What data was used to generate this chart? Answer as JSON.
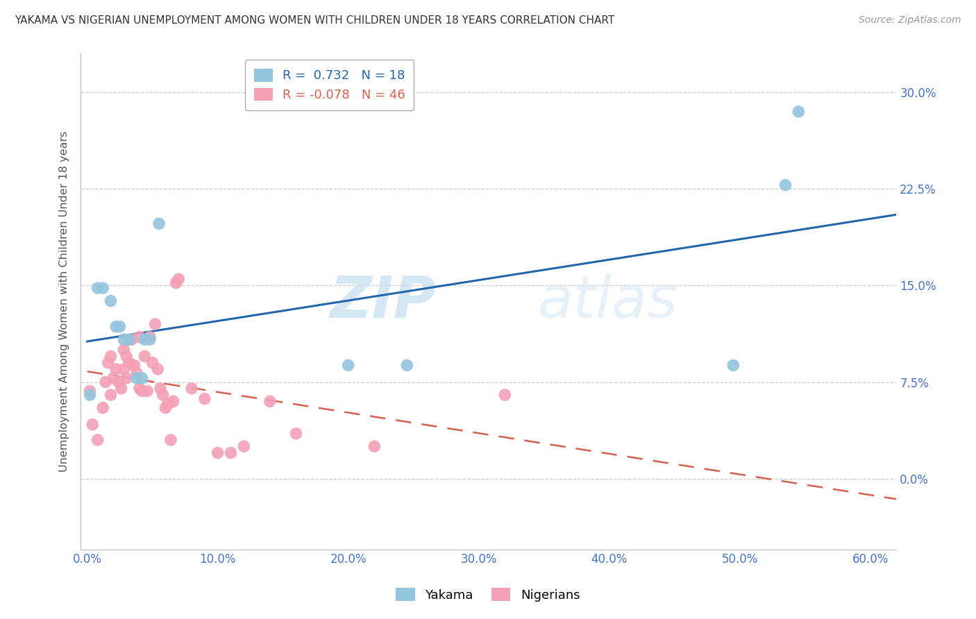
{
  "title": "YAKAMA VS NIGERIAN UNEMPLOYMENT AMONG WOMEN WITH CHILDREN UNDER 18 YEARS CORRELATION CHART",
  "source": "Source: ZipAtlas.com",
  "ylabel": "Unemployment Among Women with Children Under 18 years",
  "xlabel_ticks": [
    "0.0%",
    "10.0%",
    "20.0%",
    "30.0%",
    "40.0%",
    "50.0%",
    "60.0%"
  ],
  "xlabel_vals": [
    0.0,
    0.1,
    0.2,
    0.3,
    0.4,
    0.5,
    0.6
  ],
  "ylabel_ticks": [
    "0.0%",
    "7.5%",
    "15.0%",
    "22.5%",
    "30.0%"
  ],
  "ylabel_vals": [
    0.0,
    0.075,
    0.15,
    0.225,
    0.3
  ],
  "xlim": [
    -0.005,
    0.62
  ],
  "ylim": [
    -0.055,
    0.33
  ],
  "legend_r1": "R =  0.732   N = 18",
  "legend_r2": "R = -0.078   N = 46",
  "yakama_color": "#92c5de",
  "nigerian_color": "#f4a0b5",
  "trendline_yakama_color": "#2166ac",
  "trendline_nigerian_color": "#d6604d",
  "watermark_zip": "ZIP",
  "watermark_atlas": "atlas",
  "yakama_x": [
    0.002,
    0.008,
    0.012,
    0.018,
    0.022,
    0.025,
    0.028,
    0.032,
    0.038,
    0.042,
    0.044,
    0.048,
    0.055,
    0.2,
    0.245,
    0.495,
    0.535,
    0.545
  ],
  "yakama_y": [
    0.065,
    0.148,
    0.148,
    0.138,
    0.118,
    0.118,
    0.108,
    0.108,
    0.078,
    0.078,
    0.108,
    0.108,
    0.198,
    0.088,
    0.088,
    0.088,
    0.228,
    0.285
  ],
  "nigerian_x": [
    0.002,
    0.004,
    0.008,
    0.012,
    0.014,
    0.016,
    0.018,
    0.018,
    0.02,
    0.022,
    0.024,
    0.026,
    0.028,
    0.028,
    0.03,
    0.03,
    0.032,
    0.034,
    0.036,
    0.038,
    0.04,
    0.04,
    0.042,
    0.044,
    0.046,
    0.048,
    0.05,
    0.052,
    0.054,
    0.056,
    0.058,
    0.06,
    0.062,
    0.064,
    0.066,
    0.068,
    0.07,
    0.08,
    0.09,
    0.1,
    0.11,
    0.12,
    0.14,
    0.16,
    0.22,
    0.32
  ],
  "nigerian_y": [
    0.068,
    0.042,
    0.03,
    0.055,
    0.075,
    0.09,
    0.095,
    0.065,
    0.078,
    0.085,
    0.075,
    0.07,
    0.1,
    0.085,
    0.095,
    0.078,
    0.09,
    0.108,
    0.088,
    0.082,
    0.07,
    0.11,
    0.068,
    0.095,
    0.068,
    0.11,
    0.09,
    0.12,
    0.085,
    0.07,
    0.065,
    0.055,
    0.058,
    0.03,
    0.06,
    0.152,
    0.155,
    0.07,
    0.062,
    0.02,
    0.02,
    0.025,
    0.06,
    0.035,
    0.025,
    0.065
  ]
}
